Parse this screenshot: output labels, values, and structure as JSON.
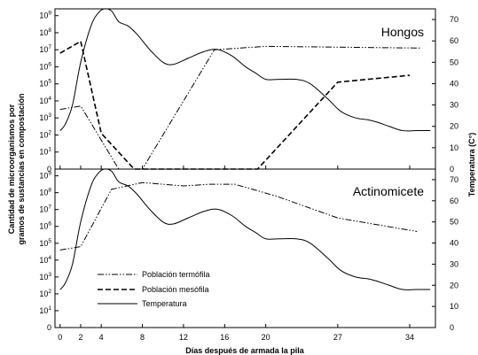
{
  "chart_data": {
    "type": "line",
    "xlabel": "Días después de armada la pila",
    "ylabel_left_lines": [
      "Cantidad de microorganismos por",
      "gramos de sustancias en compostación"
    ],
    "ylabel_right": "Temperatura (C°)",
    "x_ticks": [
      0,
      2,
      4,
      8,
      12,
      16,
      20,
      27,
      34
    ],
    "x_range": [
      -0.5,
      36.5
    ],
    "y_left_log_ticks": [
      {
        "exp": 0,
        "label": "0"
      },
      {
        "exp": 1,
        "base": "10",
        "sup": "1"
      },
      {
        "exp": 2,
        "base": "10",
        "sup": "2"
      },
      {
        "exp": 3,
        "base": "10",
        "sup": "3"
      },
      {
        "exp": 4,
        "base": "10",
        "sup": "4"
      },
      {
        "exp": 5,
        "base": "10",
        "sup": "5"
      },
      {
        "exp": 6,
        "base": "10",
        "sup": "6"
      },
      {
        "exp": 7,
        "base": "10",
        "sup": "7"
      },
      {
        "exp": 8,
        "base": "10",
        "sup": "8"
      },
      {
        "exp": 9,
        "base": "10",
        "sup": "9"
      }
    ],
    "y_left_range_log10": [
      0,
      9.4
    ],
    "y_right_ticks": [
      0,
      10,
      20,
      30,
      40,
      50,
      60,
      70
    ],
    "y_right_range": [
      0,
      75
    ],
    "legend": {
      "placement": "lower-left of bottom panel",
      "entries": [
        {
          "key": "termofila",
          "label": "Población termófila",
          "dash": "7 2 1.5 2 1.5 2"
        },
        {
          "key": "mesofila",
          "label": "Población mesófila",
          "dash": "6 3"
        },
        {
          "key": "temperatura",
          "label": "Temperatura",
          "dash": ""
        }
      ]
    },
    "panels": [
      {
        "title": "Hongos",
        "series": [
          {
            "key": "temperatura",
            "axis": "right",
            "smooth": true,
            "x": [
              0,
              0.5,
              1.2,
              2,
              3,
              3.7,
              4.3,
              5,
              5.7,
              6.6,
              7.5,
              8.7,
              10,
              11,
              12.5,
              14,
              15.3,
              16.7,
              18,
              19,
              20,
              21.3,
              23,
              24.3,
              26,
              27.3,
              28.7,
              30,
              30.8,
              32,
              33.3,
              34.7,
              36
            ],
            "y": [
              18,
              21,
              30,
              50,
              67,
              73,
              75,
              74,
              69,
              67,
              63,
              56,
              50,
              49,
              52,
              55,
              56,
              53,
              48,
              45,
              42,
              42,
              42,
              40,
              33,
              27,
              24,
              23,
              22,
              20,
              18,
              18,
              18
            ]
          },
          {
            "key": "termofila",
            "axis": "left_log",
            "x": [
              0,
              2,
              5.7,
              8,
              15,
              20,
              35
            ],
            "y": [
              3.5,
              3.7,
              0,
              0,
              7,
              7.2,
              7.1
            ]
          },
          {
            "key": "mesofila",
            "axis": "left_log",
            "x": [
              0,
              2,
              4,
              7.2,
              9,
              19.2,
              27,
              34
            ],
            "y": [
              6.8,
              7.5,
              2.1,
              0,
              0,
              0,
              5.1,
              5.5
            ]
          }
        ]
      },
      {
        "title": "Actinomicete",
        "series": [
          {
            "key": "temperatura",
            "axis": "right",
            "smooth": true,
            "x": [
              0,
              0.5,
              1.2,
              2,
              3,
              3.7,
              4.3,
              5,
              5.7,
              6.6,
              7.5,
              8.7,
              10,
              11,
              12.5,
              14,
              15.3,
              16.7,
              18,
              19,
              20,
              21.3,
              23,
              24.3,
              26,
              27.3,
              28.7,
              30,
              30.8,
              32,
              33.3,
              34.7,
              36
            ],
            "y": [
              18,
              21,
              30,
              50,
              67,
              73,
              75,
              74,
              69,
              67,
              63,
              56,
              50,
              49,
              52,
              55,
              56,
              53,
              48,
              45,
              42,
              42,
              42,
              40,
              33,
              27,
              24,
              23,
              22,
              20,
              18,
              18,
              18
            ]
          },
          {
            "key": "termofila",
            "axis": "left_log",
            "x": [
              0,
              2,
              5,
              8,
              12,
              14.5,
              17,
              21,
              27,
              34.7
            ],
            "y": [
              4.6,
              4.8,
              8.2,
              8.6,
              8.4,
              8.5,
              8.5,
              7.8,
              6.5,
              5.7
            ]
          }
        ]
      }
    ]
  }
}
